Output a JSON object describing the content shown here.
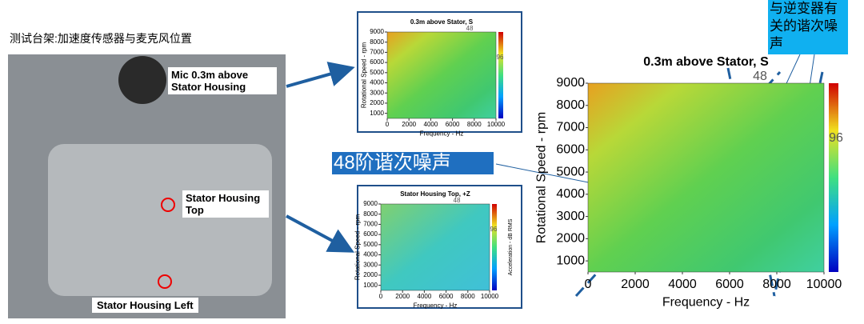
{
  "slide": {
    "caption": "测试台架:加速度传感器与麦克风位置",
    "photo_labels": [
      "Mic 0.3m above Stator Housing",
      "Stator Housing Top",
      "Stator Housing Left"
    ],
    "order_callout": "48阶谐次噪声",
    "inverter_callout": "与逆变器有关的谐次噪声"
  },
  "charts": [
    {
      "title": "0.3m above Stator, S",
      "xlabel": "Frequency - Hz",
      "ylabel": "Rotational Speed - rpm",
      "xlim": [
        0,
        10000
      ],
      "ylim": [
        500,
        9000
      ],
      "xticks": [
        0,
        2000,
        4000,
        6000,
        8000,
        10000
      ],
      "yticks": [
        1000,
        2000,
        3000,
        4000,
        5000,
        6000,
        7000,
        8000,
        9000
      ],
      "order_labels": [
        "48",
        "96"
      ]
    },
    {
      "title": "Stator Housing Top, +Z",
      "xlabel": "Frequency - Hz",
      "ylabel": "Rotational Speed - rpm",
      "colorbar_label": "Acceleration - dB RMS",
      "xlim": [
        0,
        10000
      ],
      "ylim": [
        500,
        9000
      ],
      "xticks": [
        0,
        2000,
        4000,
        6000,
        8000,
        10000
      ],
      "yticks": [
        1000,
        2000,
        3000,
        4000,
        5000,
        6000,
        7000,
        8000,
        9000
      ],
      "order_labels": [
        "48",
        "96"
      ]
    },
    {
      "title": "0.3m above Stator, S",
      "xlabel": "Frequency - Hz",
      "ylabel": "Rotational Speed - rpm",
      "xlim": [
        0,
        10000
      ],
      "ylim": [
        500,
        9000
      ],
      "xticks": [
        0,
        2000,
        4000,
        6000,
        8000,
        10000
      ],
      "yticks": [
        1000,
        2000,
        3000,
        4000,
        5000,
        6000,
        7000,
        8000,
        9000
      ],
      "order_labels": [
        "48",
        "96"
      ]
    }
  ]
}
